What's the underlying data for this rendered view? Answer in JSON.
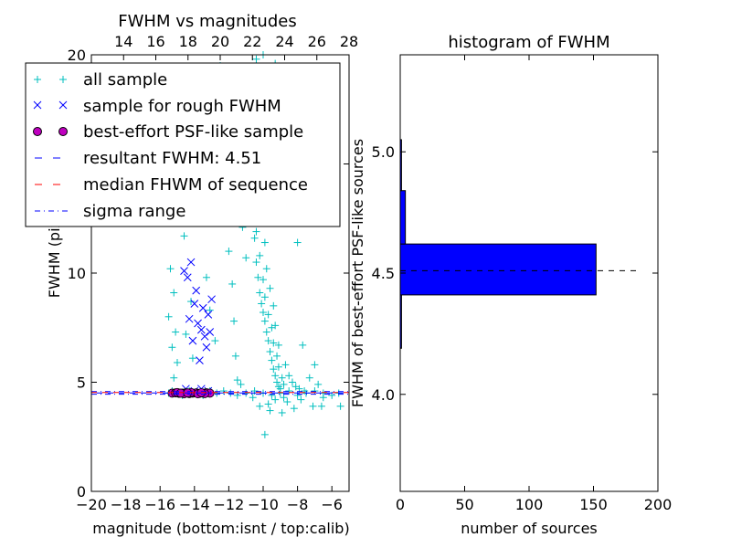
{
  "chart_data": [
    {
      "type": "scatter",
      "title": "FWHM vs magnitudes",
      "xlabel": "magnitude (bottom:isnt / top:calib)",
      "ylabel": "FWHM (pix)",
      "xlim": [
        -20,
        -5
      ],
      "ylim": [
        0,
        20
      ],
      "x_ticks": [
        "−20",
        "−18",
        "−16",
        "−14",
        "−12",
        "−10",
        "−8",
        "−6"
      ],
      "x_tick_values": [
        -20,
        -18,
        -16,
        -14,
        -12,
        -10,
        -8,
        -6
      ],
      "top_axis": {
        "xlim": [
          12,
          28
        ],
        "ticks": [
          "14",
          "16",
          "18",
          "20",
          "22",
          "24",
          "26",
          "28"
        ],
        "tick_values": [
          14,
          16,
          18,
          20,
          22,
          24,
          26,
          28
        ]
      },
      "y_ticks": [
        "0",
        "5",
        "10",
        "15",
        "20"
      ],
      "y_tick_values": [
        0,
        5,
        10,
        15,
        20
      ],
      "legend_position": "upper-left",
      "series": [
        {
          "name": "all sample",
          "marker": "+",
          "color": "#00bfbf",
          "points": [
            [
              -15.3,
              16.4
            ],
            [
              -15.2,
              14.8
            ],
            [
              -15.1,
              12.5
            ],
            [
              -15.4,
              10.2
            ],
            [
              -15.2,
              9.1
            ],
            [
              -15.5,
              8.0
            ],
            [
              -15.1,
              7.3
            ],
            [
              -15.3,
              6.6
            ],
            [
              -15.0,
              5.9
            ],
            [
              -15.2,
              5.2
            ],
            [
              -14.4,
              13.3
            ],
            [
              -14.6,
              11.7
            ],
            [
              -14.2,
              8.7
            ],
            [
              -14.5,
              7.2
            ],
            [
              -14.1,
              6.1
            ],
            [
              -13.9,
              14.3
            ],
            [
              -13.6,
              12.9
            ],
            [
              -13.3,
              9.8
            ],
            [
              -13.1,
              8.3
            ],
            [
              -12.8,
              6.9
            ],
            [
              -12.4,
              15.6
            ],
            [
              -12.2,
              13.2
            ],
            [
              -12.0,
              11.0
            ],
            [
              -11.8,
              9.5
            ],
            [
              -11.7,
              7.8
            ],
            [
              -11.6,
              6.2
            ],
            [
              -11.5,
              5.1
            ],
            [
              -11.3,
              4.9
            ],
            [
              -11.2,
              12.1
            ],
            [
              -11.0,
              10.7
            ],
            [
              -10.8,
              14.1
            ],
            [
              -10.6,
              12.8
            ],
            [
              -10.5,
              11.6
            ],
            [
              -10.4,
              10.5
            ],
            [
              -10.3,
              9.8
            ],
            [
              -10.2,
              9.1
            ],
            [
              -10.1,
              8.6
            ],
            [
              -10.0,
              8.2
            ],
            [
              -9.9,
              7.8
            ],
            [
              -9.8,
              7.3
            ],
            [
              -9.7,
              6.9
            ],
            [
              -9.6,
              6.4
            ],
            [
              -9.5,
              6.0
            ],
            [
              -9.4,
              5.6
            ],
            [
              -9.3,
              5.3
            ],
            [
              -9.2,
              5.0
            ],
            [
              -9.1,
              4.8
            ],
            [
              -9.0,
              4.7
            ],
            [
              -10.7,
              13.4
            ],
            [
              -10.4,
              11.9
            ],
            [
              -10.2,
              10.8
            ],
            [
              -10.0,
              9.7
            ],
            [
              -9.9,
              8.9
            ],
            [
              -9.7,
              8.1
            ],
            [
              -9.5,
              7.5
            ],
            [
              -9.4,
              6.8
            ],
            [
              -9.2,
              6.2
            ],
            [
              -9.1,
              5.7
            ],
            [
              -8.9,
              5.2
            ],
            [
              -8.8,
              4.9
            ],
            [
              -10.9,
              16.2
            ],
            [
              -10.6,
              15.1
            ],
            [
              -10.3,
              13.9
            ],
            [
              -10.1,
              12.6
            ],
            [
              -9.9,
              11.4
            ],
            [
              -9.8,
              10.2
            ],
            [
              -9.6,
              9.3
            ],
            [
              -9.4,
              8.5
            ],
            [
              -9.3,
              7.6
            ],
            [
              -9.1,
              6.7
            ],
            [
              -8.7,
              5.8
            ],
            [
              -8.5,
              5.3
            ],
            [
              -8.3,
              5.0
            ],
            [
              -8.1,
              4.8
            ],
            [
              -7.9,
              4.7
            ],
            [
              -7.6,
              4.6
            ],
            [
              -7.3,
              5.2
            ],
            [
              -7.0,
              5.8
            ],
            [
              -6.8,
              4.9
            ],
            [
              -6.5,
              4.3
            ],
            [
              -9.9,
              2.6
            ],
            [
              -9.6,
              3.7
            ],
            [
              -10.2,
              3.9
            ],
            [
              -8.9,
              3.6
            ],
            [
              -8.2,
              3.8
            ],
            [
              -7.1,
              3.9
            ],
            [
              -6.6,
              3.9
            ],
            [
              -5.5,
              3.9
            ],
            [
              -7.7,
              6.7
            ],
            [
              -8.0,
              11.4
            ],
            [
              -10.4,
              19.8
            ],
            [
              -9.8,
              18.3
            ],
            [
              -10.5,
              17.4
            ],
            [
              -10.0,
              20.0
            ],
            [
              -9.3,
              19.6
            ],
            [
              -9.2,
              16.0
            ],
            [
              -11.1,
              17.0
            ],
            [
              -14.0,
              19.2
            ],
            [
              -13.5,
              17.8
            ],
            [
              -12.5,
              19.5
            ],
            [
              -15.5,
              4.5
            ],
            [
              -15.3,
              4.6
            ],
            [
              -15.0,
              4.5
            ],
            [
              -14.7,
              4.4
            ],
            [
              -14.3,
              4.6
            ],
            [
              -13.9,
              4.5
            ],
            [
              -13.5,
              4.4
            ],
            [
              -13.1,
              4.6
            ],
            [
              -12.7,
              4.5
            ],
            [
              -12.3,
              4.6
            ],
            [
              -11.9,
              4.5
            ],
            [
              -11.5,
              4.4
            ],
            [
              -11.0,
              4.5
            ],
            [
              -10.5,
              4.6
            ],
            [
              -10.0,
              4.5
            ],
            [
              -9.5,
              4.4
            ],
            [
              -9.0,
              4.5
            ],
            [
              -8.5,
              4.6
            ],
            [
              -8.0,
              4.4
            ],
            [
              -7.5,
              4.5
            ],
            [
              -7.0,
              4.6
            ],
            [
              -6.5,
              4.5
            ],
            [
              -6.0,
              4.4
            ],
            [
              -5.6,
              4.5
            ],
            [
              -9.3,
              4.2
            ],
            [
              -8.6,
              4.1
            ],
            [
              -10.6,
              4.3
            ],
            [
              -9.7,
              4.0
            ],
            [
              -8.8,
              4.3
            ],
            [
              -7.8,
              4.2
            ]
          ]
        },
        {
          "name": "sample for rough FWHM",
          "marker": "x",
          "color": "#0000ff",
          "points": [
            [
              -14.6,
              10.1
            ],
            [
              -14.4,
              9.8
            ],
            [
              -14.2,
              10.5
            ],
            [
              -14.0,
              8.6
            ],
            [
              -13.8,
              7.7
            ],
            [
              -14.1,
              6.9
            ],
            [
              -13.6,
              7.4
            ],
            [
              -13.4,
              7.1
            ],
            [
              -13.2,
              8.1
            ],
            [
              -13.3,
              6.6
            ],
            [
              -13.1,
              7.3
            ],
            [
              -13.0,
              8.8
            ],
            [
              -13.7,
              6.0
            ],
            [
              -14.3,
              7.9
            ],
            [
              -13.9,
              9.2
            ],
            [
              -13.5,
              8.4
            ],
            [
              -14.5,
              4.7
            ],
            [
              -14.0,
              4.6
            ],
            [
              -13.6,
              4.7
            ],
            [
              -13.2,
              4.6
            ]
          ]
        },
        {
          "name": "best-effort PSF-like sample",
          "marker": "o",
          "color": "#bf00bf",
          "points": [
            [
              -15.3,
              4.5
            ],
            [
              -15.1,
              4.51
            ],
            [
              -14.9,
              4.49
            ],
            [
              -14.7,
              4.5
            ],
            [
              -14.5,
              4.52
            ],
            [
              -14.3,
              4.48
            ],
            [
              -14.1,
              4.5
            ],
            [
              -13.9,
              4.51
            ],
            [
              -13.7,
              4.49
            ],
            [
              -13.5,
              4.5
            ],
            [
              -13.3,
              4.52
            ],
            [
              -13.1,
              4.5
            ],
            [
              -15.0,
              4.53
            ],
            [
              -14.6,
              4.47
            ],
            [
              -14.2,
              4.53
            ],
            [
              -13.8,
              4.47
            ],
            [
              -13.4,
              4.48
            ],
            [
              -14.8,
              4.5
            ],
            [
              -14.4,
              4.51
            ],
            [
              -13.6,
              4.52
            ]
          ]
        },
        {
          "name": "resultant FWHM: 4.51",
          "style": "dashed",
          "color": "#0000ff",
          "y": 4.51
        },
        {
          "name": "median FHWM of sequence",
          "style": "dashed",
          "color": "#ff0000",
          "y": 4.53
        },
        {
          "name": "sigma range",
          "style": "dash-dot",
          "color": "#0000ff",
          "y": [
            4.45,
            4.57
          ]
        }
      ]
    },
    {
      "type": "bar",
      "orientation": "horizontal",
      "title": "histogram of FWHM",
      "xlabel": "number of sources",
      "ylabel": "FWHM of best-effort PSF-like sources",
      "xlim": [
        0,
        200
      ],
      "ylim": [
        3.6,
        5.4
      ],
      "x_ticks": [
        "0",
        "50",
        "100",
        "150",
        "200"
      ],
      "x_tick_values": [
        0,
        50,
        100,
        150,
        200
      ],
      "y_ticks": [
        "4.0",
        "4.5",
        "5.0"
      ],
      "y_tick_values": [
        4.0,
        4.5,
        5.0
      ],
      "bar_color": "#0000ff",
      "bins": [
        {
          "y0": 4.19,
          "y1": 4.41,
          "value": 1
        },
        {
          "y0": 4.41,
          "y1": 4.62,
          "value": 152
        },
        {
          "y0": 4.62,
          "y1": 4.84,
          "value": 4
        },
        {
          "y0": 4.84,
          "y1": 5.05,
          "value": 1
        }
      ],
      "reference_line": {
        "y": 4.51,
        "x_range": [
          0,
          185
        ],
        "style": "dashed",
        "color": "#000000"
      }
    }
  ]
}
